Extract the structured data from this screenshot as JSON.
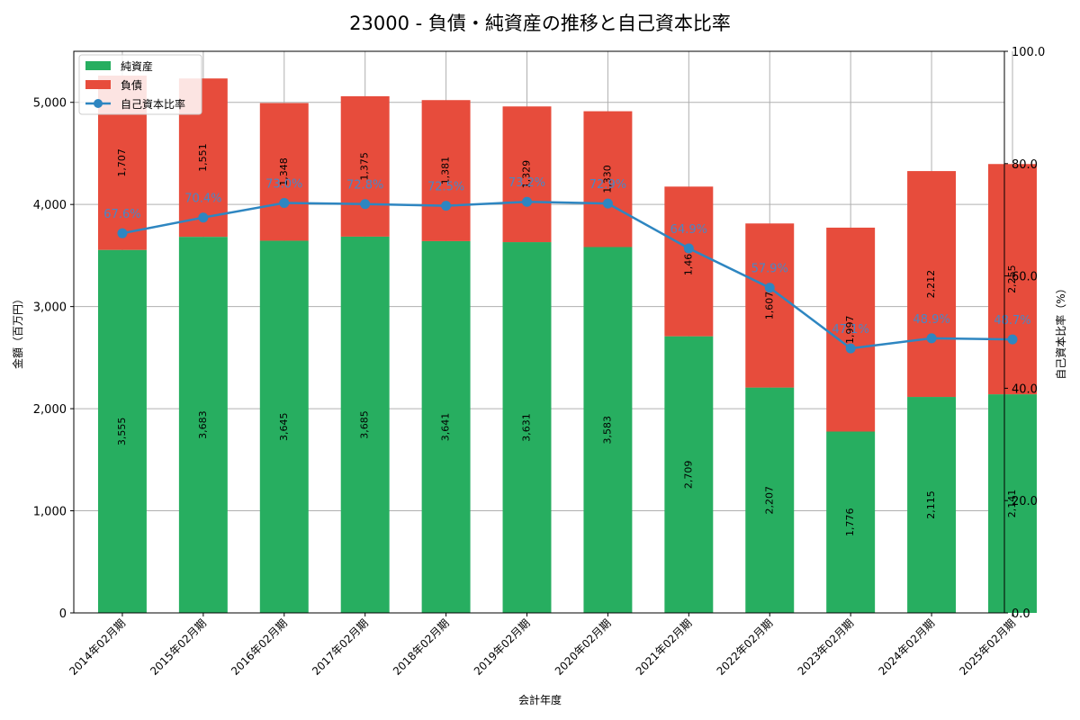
{
  "colors": {
    "equity": "#27ae60",
    "liabilities": "#e74c3c",
    "ratio": "#2e86c1",
    "grid": "#b0b0b0",
    "axis": "#000000"
  },
  "chart_data": {
    "type": "bar",
    "stacked": true,
    "title": "23000 - 負債・純資産の推移と自己資本比率",
    "xlabel": "会計年度",
    "ylabel": "金額（百万円）",
    "y2label": "自己資本比率（%）",
    "ylim": [
      0,
      5500
    ],
    "y2lim": [
      0,
      100
    ],
    "yticks": [
      0,
      1000,
      2000,
      3000,
      4000,
      5000
    ],
    "ytick_labels": [
      "0",
      "1,000",
      "2,000",
      "3,000",
      "4,000",
      "5,000"
    ],
    "y2ticks": [
      0,
      20,
      40,
      60,
      80,
      100
    ],
    "y2tick_labels": [
      "0.0",
      "20.0",
      "40.0",
      "60.0",
      "80.0",
      "100.0"
    ],
    "grid": true,
    "legend_position": "top-left",
    "categories": [
      "2014年02月期",
      "2015年02月期",
      "2016年02月期",
      "2017年02月期",
      "2018年02月期",
      "2019年02月期",
      "2020年02月期",
      "2021年02月期",
      "2022年02月期",
      "2023年02月期",
      "2024年02月期",
      "2025年02月期"
    ],
    "series": [
      {
        "name": "純資産",
        "kind": "bar",
        "values": [
          3555,
          3683,
          3645,
          3685,
          3641,
          3631,
          3583,
          2709,
          2207,
          1776,
          2115,
          2141
        ],
        "labels": [
          "3,555",
          "3,683",
          "3,645",
          "3,685",
          "3,641",
          "3,631",
          "3,583",
          "2,709",
          "2,207",
          "1,776",
          "2,115",
          "2,141"
        ]
      },
      {
        "name": "負債",
        "kind": "bar",
        "values": [
          1707,
          1551,
          1348,
          1375,
          1381,
          1329,
          1330,
          1466,
          1607,
          1997,
          2212,
          2255
        ],
        "labels": [
          "1,707",
          "1,551",
          "1,348",
          "1,375",
          "1,381",
          "1,329",
          "1,330",
          "1,466",
          "1,607",
          "1,997",
          "2,212",
          "2,255"
        ]
      },
      {
        "name": "自己資本比率",
        "kind": "line",
        "axis": "right",
        "values": [
          67.6,
          70.4,
          73.0,
          72.8,
          72.5,
          73.2,
          72.9,
          64.9,
          57.9,
          47.1,
          48.9,
          48.7
        ],
        "labels": [
          "67.6%",
          "70.4%",
          "73.0%",
          "72.8%",
          "72.5%",
          "73.2%",
          "72.9%",
          "64.9%",
          "57.9%",
          "47.1%",
          "48.9%",
          "48.7%"
        ]
      }
    ]
  }
}
